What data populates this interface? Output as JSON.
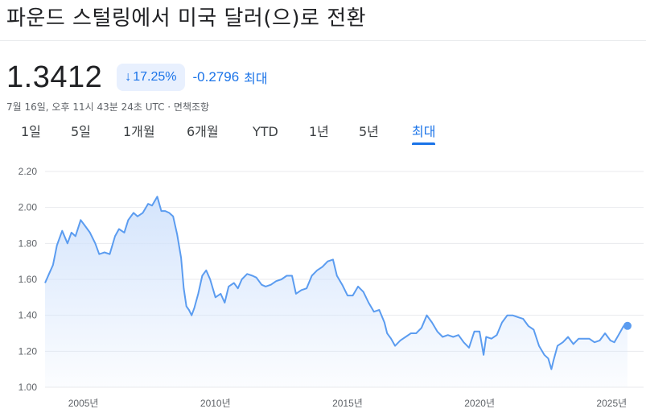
{
  "title": "파운드 스털링에서 미국 달러(으)로 전환",
  "price": "1.3412",
  "change_percent": "17.25%",
  "change_absolute": "-0.2796",
  "change_period": "최대",
  "timestamp": "7월 16일, 오후 11시 43분 24초 UTC · 면책조항",
  "tabs": [
    {
      "label": "1일"
    },
    {
      "label": "5일"
    },
    {
      "label": "1개월"
    },
    {
      "label": "6개월"
    },
    {
      "label": "YTD"
    },
    {
      "label": "1년"
    },
    {
      "label": "5년"
    },
    {
      "label": "최대"
    }
  ],
  "active_tab": "최대",
  "colors": {
    "accent": "#1a73e8",
    "line": "#5b9cf0",
    "area_top": "#d6e6fc",
    "grid": "#e8eaed",
    "down": "#1a73e8"
  },
  "chart_data": {
    "type": "area",
    "y_ticks": [
      "2.20",
      "2.00",
      "1.80",
      "1.60",
      "1.40",
      "1.20",
      "1.00"
    ],
    "x_ticks": [
      "2005년",
      "2010년",
      "2015년",
      "2020년",
      "2025년"
    ],
    "x_tick_values": [
      2005,
      2010,
      2015,
      2020,
      2025
    ],
    "ylim": [
      1.0,
      2.2
    ],
    "xlim": [
      2003.55,
      2025.6
    ],
    "grid": true,
    "series": [
      {
        "x": [
          2003.55,
          2003.7,
          2003.85,
          2004.0,
          2004.2,
          2004.4,
          2004.55,
          2004.7,
          2004.9,
          2005.05,
          2005.25,
          2005.45,
          2005.6,
          2005.8,
          2006.0,
          2006.2,
          2006.35,
          2006.55,
          2006.7,
          2006.9,
          2007.05,
          2007.25,
          2007.45,
          2007.6,
          2007.8,
          2007.95,
          2008.1,
          2008.25,
          2008.4,
          2008.55,
          2008.7,
          2008.8,
          2008.9,
          2009.0,
          2009.1,
          2009.2,
          2009.35,
          2009.5,
          2009.65,
          2009.8,
          2010.0,
          2010.2,
          2010.35,
          2010.5,
          2010.7,
          2010.85,
          2011.0,
          2011.2,
          2011.4,
          2011.55,
          2011.75,
          2011.9,
          2012.1,
          2012.3,
          2012.5,
          2012.7,
          2012.9,
          2013.05,
          2013.25,
          2013.45,
          2013.65,
          2013.85,
          2014.05,
          2014.25,
          2014.45,
          2014.6,
          2014.8,
          2015.0,
          2015.2,
          2015.4,
          2015.6,
          2015.8,
          2016.0,
          2016.2,
          2016.4,
          2016.5,
          2016.65,
          2016.8,
          2017.0,
          2017.2,
          2017.4,
          2017.6,
          2017.8,
          2018.0,
          2018.2,
          2018.4,
          2018.6,
          2018.8,
          2019.0,
          2019.2,
          2019.4,
          2019.6,
          2019.8,
          2020.0,
          2020.15,
          2020.25,
          2020.45,
          2020.65,
          2020.85,
          2021.05,
          2021.25,
          2021.45,
          2021.65,
          2021.85,
          2022.05,
          2022.25,
          2022.45,
          2022.6,
          2022.72,
          2022.8,
          2022.95,
          2023.15,
          2023.35,
          2023.55,
          2023.75,
          2023.95,
          2024.15,
          2024.35,
          2024.55,
          2024.75,
          2024.95,
          2025.1,
          2025.3,
          2025.45,
          2025.6
        ],
        "y": [
          1.58,
          1.63,
          1.68,
          1.79,
          1.87,
          1.8,
          1.86,
          1.84,
          1.93,
          1.9,
          1.86,
          1.8,
          1.74,
          1.75,
          1.74,
          1.84,
          1.88,
          1.86,
          1.93,
          1.97,
          1.95,
          1.97,
          2.02,
          2.01,
          2.06,
          1.98,
          1.98,
          1.97,
          1.95,
          1.85,
          1.72,
          1.55,
          1.45,
          1.43,
          1.4,
          1.44,
          1.52,
          1.62,
          1.65,
          1.6,
          1.5,
          1.52,
          1.47,
          1.56,
          1.58,
          1.55,
          1.6,
          1.63,
          1.62,
          1.61,
          1.57,
          1.56,
          1.57,
          1.59,
          1.6,
          1.62,
          1.62,
          1.52,
          1.54,
          1.55,
          1.62,
          1.65,
          1.67,
          1.7,
          1.71,
          1.62,
          1.57,
          1.51,
          1.51,
          1.56,
          1.53,
          1.47,
          1.42,
          1.43,
          1.36,
          1.3,
          1.27,
          1.23,
          1.26,
          1.28,
          1.3,
          1.3,
          1.33,
          1.4,
          1.36,
          1.31,
          1.28,
          1.29,
          1.28,
          1.29,
          1.25,
          1.22,
          1.31,
          1.31,
          1.18,
          1.28,
          1.27,
          1.29,
          1.36,
          1.4,
          1.4,
          1.39,
          1.38,
          1.34,
          1.32,
          1.23,
          1.18,
          1.16,
          1.1,
          1.15,
          1.23,
          1.25,
          1.28,
          1.24,
          1.27,
          1.27,
          1.27,
          1.25,
          1.26,
          1.3,
          1.26,
          1.25,
          1.3,
          1.34,
          1.3412
        ]
      }
    ]
  }
}
